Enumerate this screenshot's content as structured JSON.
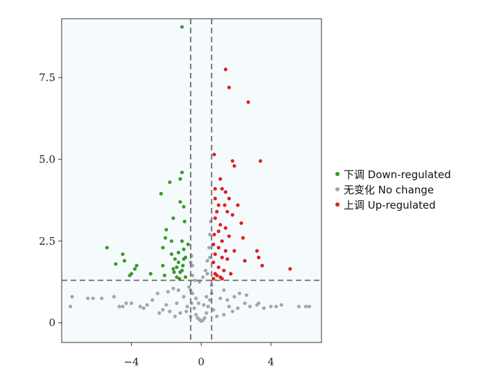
{
  "chart_data": {
    "type": "scatter",
    "xlim": [
      -8.0,
      6.9
    ],
    "ylim": [
      -0.6,
      9.3
    ],
    "xticks": [
      -4,
      0,
      4
    ],
    "yticks": [
      0,
      2.5,
      5.0,
      7.5
    ],
    "xtick_labels": [
      "−4",
      "0",
      "4"
    ],
    "ytick_labels": [
      "0",
      "2.5",
      "5.0",
      "7.5"
    ],
    "grid": false,
    "legend_position": "right",
    "thresholds": {
      "x": [
        -0.6,
        0.6
      ],
      "y": 1.3
    },
    "colors": {
      "down": "#3a9a2a",
      "nochange": "#a6a6a6",
      "up": "#e02020",
      "threshold": "#666666",
      "background": "#f5fafd"
    },
    "legend": [
      {
        "key": "down",
        "label": "下调 Down-regulated"
      },
      {
        "key": "nochange",
        "label": "无变化 No change"
      },
      {
        "key": "up",
        "label": "上调  Up-regulated"
      }
    ],
    "series": [
      {
        "key": "down",
        "name": "下调 Down-regulated",
        "points": [
          [
            -1.1,
            9.05
          ],
          [
            -1.1,
            4.6
          ],
          [
            -1.2,
            4.4
          ],
          [
            -1.8,
            4.3
          ],
          [
            -2.3,
            3.95
          ],
          [
            -1.2,
            3.7
          ],
          [
            -1.0,
            3.55
          ],
          [
            -0.95,
            3.1
          ],
          [
            -1.6,
            3.2
          ],
          [
            -2.0,
            2.85
          ],
          [
            -2.05,
            2.6
          ],
          [
            -1.7,
            2.5
          ],
          [
            -1.1,
            2.5
          ],
          [
            -0.75,
            2.4
          ],
          [
            -2.2,
            2.3
          ],
          [
            -1.0,
            2.25
          ],
          [
            -1.3,
            2.15
          ],
          [
            -1.7,
            2.1
          ],
          [
            -0.9,
            2.0
          ],
          [
            -5.4,
            2.3
          ],
          [
            -4.5,
            2.1
          ],
          [
            -4.4,
            1.9
          ],
          [
            -3.7,
            1.75
          ],
          [
            -3.8,
            1.65
          ],
          [
            -4.0,
            1.5
          ],
          [
            -4.9,
            1.8
          ],
          [
            -4.1,
            1.45
          ],
          [
            -2.9,
            1.5
          ],
          [
            -2.2,
            1.75
          ],
          [
            -1.5,
            1.95
          ],
          [
            -1.3,
            1.85
          ],
          [
            -1.4,
            1.7
          ],
          [
            -1.05,
            1.75
          ],
          [
            -1.2,
            1.55
          ],
          [
            -1.55,
            1.55
          ],
          [
            -1.4,
            1.4
          ],
          [
            -1.25,
            1.35
          ],
          [
            -0.9,
            1.4
          ],
          [
            -1.1,
            1.6
          ],
          [
            -2.1,
            1.45
          ],
          [
            -1.0,
            1.95
          ],
          [
            -1.6,
            1.65
          ]
        ]
      },
      {
        "key": "nochange",
        "name": "无变化 No change",
        "points": [
          [
            -7.4,
            0.8
          ],
          [
            -7.5,
            0.5
          ],
          [
            -6.5,
            0.75
          ],
          [
            -6.2,
            0.75
          ],
          [
            -5.7,
            0.75
          ],
          [
            -5.0,
            0.8
          ],
          [
            -4.7,
            0.5
          ],
          [
            -4.5,
            0.5
          ],
          [
            -4.0,
            0.6
          ],
          [
            -3.5,
            0.5
          ],
          [
            -3.1,
            0.55
          ],
          [
            -2.8,
            0.7
          ],
          [
            -2.5,
            0.9
          ],
          [
            -2.2,
            0.4
          ],
          [
            -1.9,
            0.95
          ],
          [
            -1.6,
            1.05
          ],
          [
            -1.4,
            0.6
          ],
          [
            -1.2,
            0.3
          ],
          [
            -1.0,
            0.8
          ],
          [
            -0.8,
            0.5
          ],
          [
            -0.7,
            1.1
          ],
          [
            -0.6,
            0.2
          ],
          [
            -0.5,
            0.9
          ],
          [
            -0.4,
            0.45
          ],
          [
            -0.3,
            0.25
          ],
          [
            -0.2,
            0.15
          ],
          [
            -0.1,
            0.1
          ],
          [
            0.0,
            0.05
          ],
          [
            0.1,
            0.08
          ],
          [
            0.2,
            0.15
          ],
          [
            0.3,
            0.3
          ],
          [
            0.4,
            0.5
          ],
          [
            0.5,
            0.7
          ],
          [
            0.6,
            0.9
          ],
          [
            0.7,
            0.4
          ],
          [
            0.9,
            0.2
          ],
          [
            1.1,
            0.75
          ],
          [
            1.3,
            1.0
          ],
          [
            1.6,
            0.5
          ],
          [
            1.8,
            0.35
          ],
          [
            2.2,
            0.9
          ],
          [
            2.5,
            0.6
          ],
          [
            2.8,
            0.5
          ],
          [
            3.2,
            0.55
          ],
          [
            3.6,
            0.45
          ],
          [
            4.0,
            0.5
          ],
          [
            4.3,
            0.5
          ],
          [
            5.6,
            0.5
          ],
          [
            6.0,
            0.5
          ],
          [
            6.2,
            0.5
          ],
          [
            -0.35,
            1.3
          ],
          [
            -0.5,
            1.45
          ],
          [
            -0.1,
            1.25
          ],
          [
            0.1,
            1.4
          ],
          [
            0.25,
            1.6
          ],
          [
            0.35,
            1.5
          ],
          [
            -0.55,
            0.6
          ],
          [
            -0.85,
            0.35
          ],
          [
            -1.5,
            0.2
          ],
          [
            -2.0,
            0.55
          ],
          [
            -2.4,
            0.3
          ],
          [
            1.3,
            0.25
          ],
          [
            1.9,
            0.8
          ],
          [
            2.1,
            0.45
          ],
          [
            -0.3,
            0.75
          ],
          [
            0.3,
            0.8
          ],
          [
            -0.15,
            0.6
          ],
          [
            0.15,
            0.55
          ],
          [
            -0.6,
            1.0
          ],
          [
            0.6,
            1.15
          ],
          [
            0.45,
            2.3
          ],
          [
            0.5,
            2.7
          ],
          [
            0.55,
            3.1
          ],
          [
            0.5,
            2.0
          ],
          [
            -0.6,
            1.85
          ],
          [
            -0.55,
            2.05
          ],
          [
            -0.5,
            1.75
          ],
          [
            0.35,
            1.9
          ],
          [
            -1.8,
            0.35
          ],
          [
            -3.3,
            0.45
          ],
          [
            -4.3,
            0.6
          ],
          [
            2.6,
            0.85
          ],
          [
            3.3,
            0.6
          ],
          [
            4.6,
            0.55
          ],
          [
            1.5,
            0.7
          ],
          [
            -1.3,
            1.0
          ]
        ]
      },
      {
        "key": "up",
        "name": "上调  Up-regulated",
        "points": [
          [
            1.4,
            7.75
          ],
          [
            1.6,
            7.2
          ],
          [
            2.7,
            6.75
          ],
          [
            3.4,
            4.95
          ],
          [
            1.8,
            4.95
          ],
          [
            1.9,
            4.8
          ],
          [
            0.75,
            5.15
          ],
          [
            0.8,
            4.1
          ],
          [
            1.1,
            4.4
          ],
          [
            1.2,
            4.1
          ],
          [
            1.4,
            4.0
          ],
          [
            0.8,
            3.8
          ],
          [
            1.6,
            3.8
          ],
          [
            1.0,
            3.6
          ],
          [
            1.35,
            3.6
          ],
          [
            2.1,
            3.6
          ],
          [
            1.5,
            3.4
          ],
          [
            0.9,
            3.4
          ],
          [
            1.8,
            3.3
          ],
          [
            0.8,
            3.2
          ],
          [
            1.1,
            3.0
          ],
          [
            2.3,
            3.05
          ],
          [
            1.0,
            2.8
          ],
          [
            1.4,
            2.9
          ],
          [
            0.75,
            2.7
          ],
          [
            1.2,
            2.5
          ],
          [
            1.6,
            2.65
          ],
          [
            2.4,
            2.6
          ],
          [
            0.7,
            2.4
          ],
          [
            1.0,
            2.3
          ],
          [
            1.4,
            2.2
          ],
          [
            1.9,
            2.2
          ],
          [
            0.8,
            2.1
          ],
          [
            1.2,
            2.0
          ],
          [
            1.5,
            1.95
          ],
          [
            0.7,
            1.85
          ],
          [
            1.0,
            1.7
          ],
          [
            1.3,
            1.6
          ],
          [
            0.8,
            1.5
          ],
          [
            1.1,
            1.4
          ],
          [
            0.7,
            1.35
          ],
          [
            3.2,
            2.2
          ],
          [
            3.3,
            2.0
          ],
          [
            3.5,
            1.75
          ],
          [
            5.1,
            1.65
          ],
          [
            2.5,
            1.9
          ],
          [
            1.7,
            1.5
          ],
          [
            0.9,
            1.45
          ],
          [
            1.2,
            1.35
          ]
        ]
      }
    ]
  }
}
